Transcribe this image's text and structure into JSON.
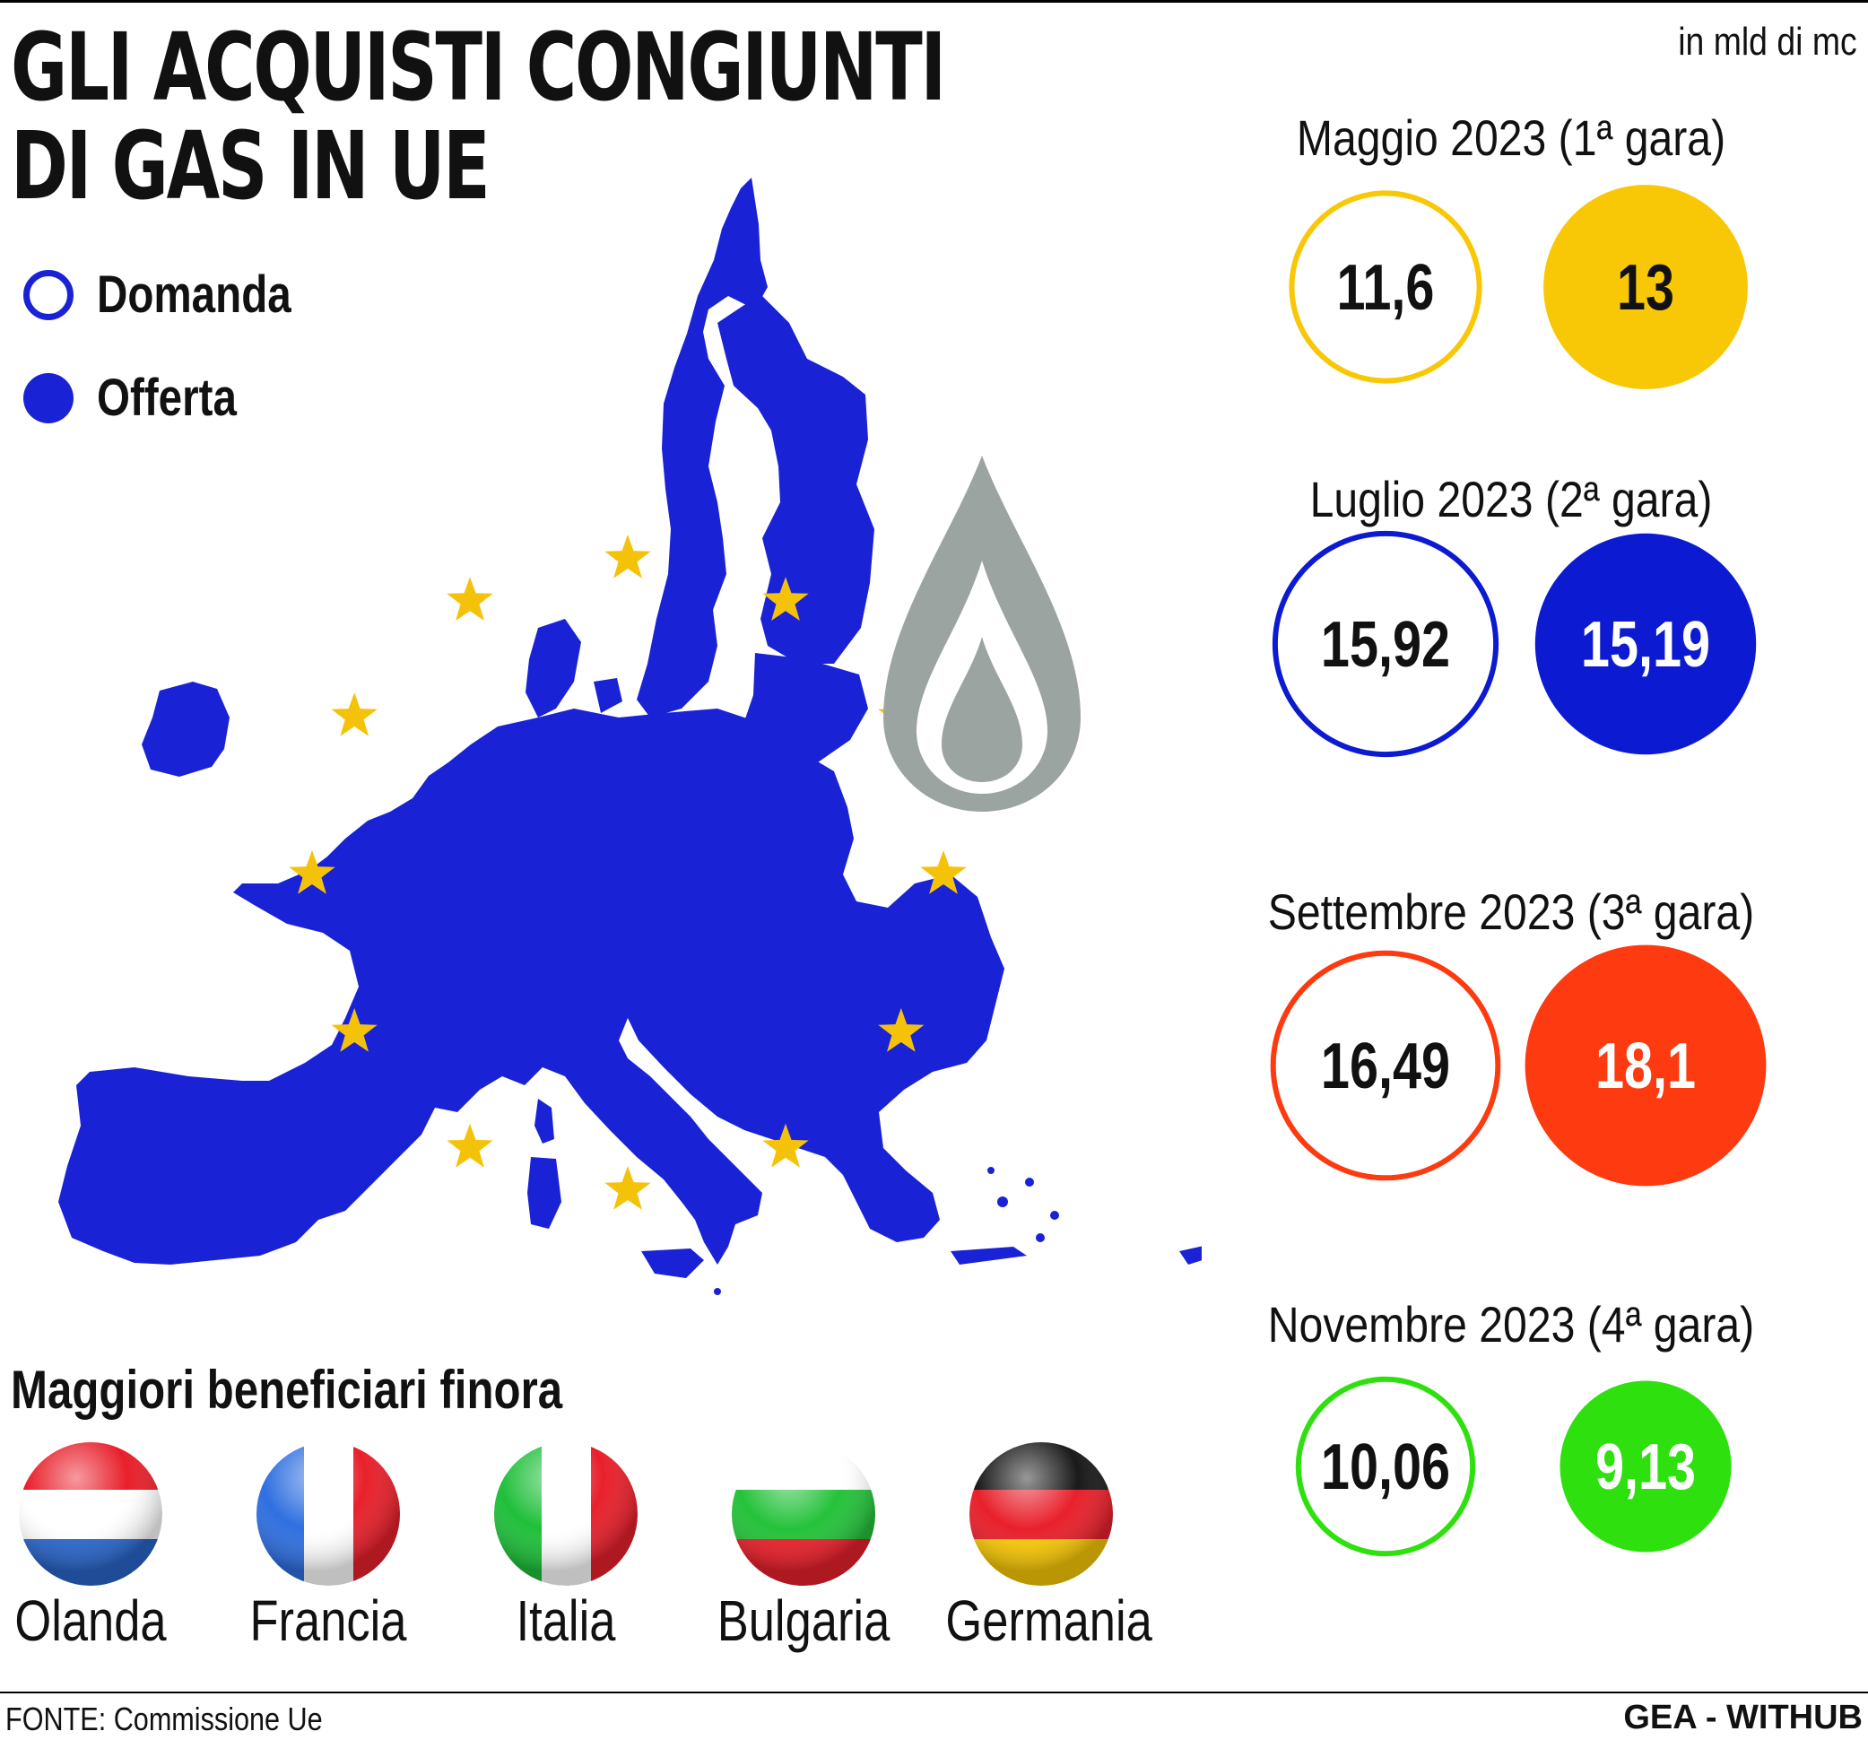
{
  "header": {
    "title_line1": "GLI ACQUISTI CONGIUNTI",
    "title_line2": "DI GAS IN UE",
    "unit": "in mld di mc"
  },
  "legend": {
    "demand_label": "Domanda",
    "supply_label": "Offerta"
  },
  "colors": {
    "map_blue": "#1a22d6",
    "star_yellow": "#f5c20a",
    "flame_grey": "#9ca4a2"
  },
  "chart_data": {
    "type": "bubble",
    "unit": "in mld di mc",
    "series": [
      {
        "name": "Domanda",
        "style": "outline"
      },
      {
        "name": "Offerta",
        "style": "filled"
      }
    ],
    "rounds": [
      {
        "label": "Maggio 2023 (1ª gara)",
        "demand": 11.6,
        "demand_label": "11,6",
        "supply": 13,
        "supply_label": "13",
        "color": "#f8c807",
        "supply_text_color": "#111111"
      },
      {
        "label": "Luglio 2023 (2ª gara)",
        "demand": 15.92,
        "demand_label": "15,92",
        "supply": 15.19,
        "supply_label": "15,19",
        "color": "#0c1ad1",
        "supply_text_color": "#ffffff"
      },
      {
        "label": "Settembre 2023 (3ª gara)",
        "demand": 16.49,
        "demand_label": "16,49",
        "supply": 18.1,
        "supply_label": "18,1",
        "color": "#fd3a10",
        "supply_text_color": "#ffffff"
      },
      {
        "label": "Novembre 2023 (4ª gara)",
        "demand": 10.06,
        "demand_label": "10,06",
        "supply": 9.13,
        "supply_label": "9,13",
        "color": "#2ee00e",
        "supply_text_color": "#ffffff"
      }
    ]
  },
  "beneficiaries": {
    "title": "Maggiori beneficiari finora",
    "countries": [
      {
        "name": "Olanda",
        "flag_icon": "netherlands-flag-icon"
      },
      {
        "name": "Francia",
        "flag_icon": "france-flag-icon"
      },
      {
        "name": "Italia",
        "flag_icon": "italy-flag-icon"
      },
      {
        "name": "Bulgaria",
        "flag_icon": "bulgaria-flag-icon"
      },
      {
        "name": "Germania",
        "flag_icon": "germany-flag-icon"
      }
    ]
  },
  "footer": {
    "source": "FONTE: Commissione Ue",
    "credit": "GEA - WITHUB"
  }
}
